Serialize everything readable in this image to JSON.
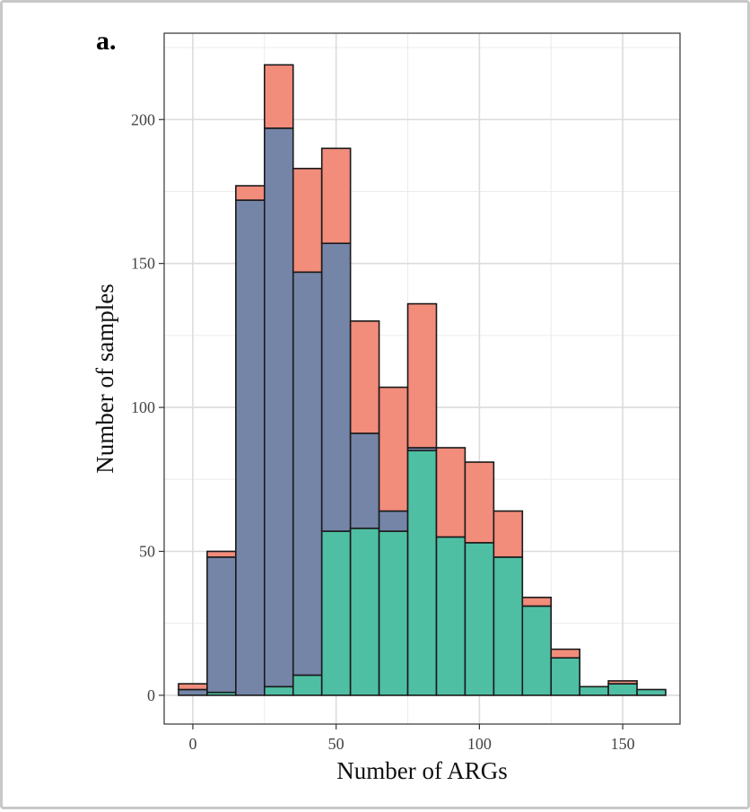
{
  "chart_data": {
    "type": "bar",
    "stacked": true,
    "panel_label": "a.",
    "title": "",
    "xlabel": "Number of ARGs",
    "ylabel": "Number of samples",
    "xlim": [
      -10,
      170
    ],
    "ylim": [
      -10,
      230
    ],
    "x_ticks": [
      0,
      50,
      100,
      150
    ],
    "y_ticks": [
      0,
      50,
      100,
      150,
      200
    ],
    "bin_width": 10,
    "grid": true,
    "legend": "none",
    "bin_centers": [
      0,
      10,
      20,
      30,
      40,
      50,
      60,
      70,
      80,
      90,
      100,
      110,
      120,
      130,
      140,
      150,
      160
    ],
    "series": [
      {
        "color": "#4fbfa4",
        "values": [
          0,
          1,
          0,
          3,
          7,
          57,
          58,
          57,
          85,
          55,
          53,
          48,
          31,
          13,
          3,
          4,
          2
        ]
      },
      {
        "color": "#7585a8",
        "values": [
          2,
          47,
          172,
          194,
          140,
          100,
          33,
          7,
          1,
          0,
          0,
          0,
          0,
          0,
          0,
          0,
          0
        ]
      },
      {
        "color": "#f28c7b",
        "values": [
          2,
          2,
          5,
          22,
          36,
          33,
          39,
          43,
          50,
          31,
          28,
          16,
          3,
          3,
          0,
          1,
          0
        ]
      }
    ]
  }
}
